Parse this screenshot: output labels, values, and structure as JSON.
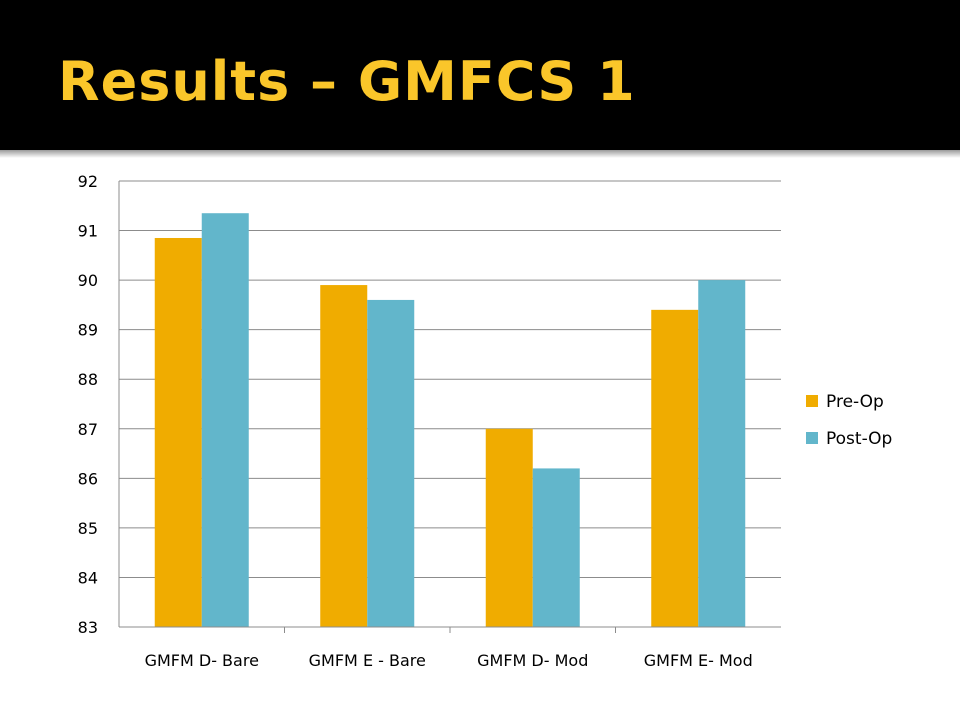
{
  "slide": {
    "title": "Results – GMFCS 1",
    "title_color": "#fac62a",
    "background_color": "#000000"
  },
  "chart_data": {
    "type": "bar",
    "title": "",
    "xlabel": "",
    "ylabel": "",
    "categories": [
      "GMFM D- Bare",
      "GMFM E - Bare",
      "GMFM D- Mod",
      "GMFM E- Mod"
    ],
    "series": [
      {
        "name": "Pre-Op",
        "color": "#f0ac00",
        "values": [
          90.85,
          89.9,
          87.0,
          89.4
        ]
      },
      {
        "name": "Post-Op",
        "color": "#62b6cb",
        "values": [
          91.35,
          89.6,
          86.2,
          90.0
        ]
      }
    ],
    "ylim": [
      83,
      92
    ],
    "yticks": [
      "83",
      "84",
      "85",
      "86",
      "87",
      "88",
      "89",
      "90",
      "91",
      "92"
    ],
    "grid": true,
    "legend_position": "right"
  }
}
